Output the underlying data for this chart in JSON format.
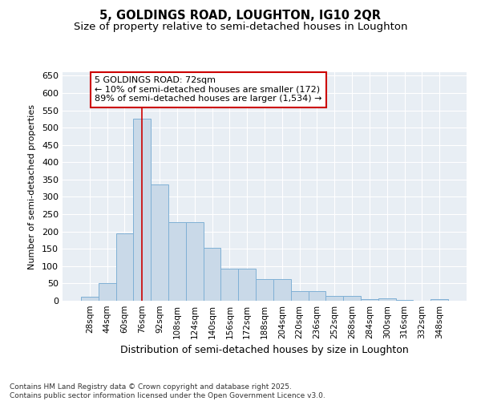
{
  "title": "5, GOLDINGS ROAD, LOUGHTON, IG10 2QR",
  "subtitle": "Size of property relative to semi-detached houses in Loughton",
  "xlabel": "Distribution of semi-detached houses by size in Loughton",
  "ylabel": "Number of semi-detached properties",
  "categories": [
    "28sqm",
    "44sqm",
    "60sqm",
    "76sqm",
    "92sqm",
    "108sqm",
    "124sqm",
    "140sqm",
    "156sqm",
    "172sqm",
    "188sqm",
    "204sqm",
    "220sqm",
    "236sqm",
    "252sqm",
    "268sqm",
    "284sqm",
    "300sqm",
    "316sqm",
    "332sqm",
    "348sqm"
  ],
  "values": [
    12,
    50,
    195,
    525,
    335,
    227,
    227,
    152,
    93,
    93,
    63,
    63,
    28,
    28,
    13,
    13,
    5,
    7,
    2,
    1,
    4
  ],
  "bar_color": "#c9d9e8",
  "bar_edge_color": "#7fb0d5",
  "annotation_line_x": "76sqm",
  "annotation_line_color": "#cc0000",
  "annotation_text": "5 GOLDINGS ROAD: 72sqm\n← 10% of semi-detached houses are smaller (172)\n89% of semi-detached houses are larger (1,534) →",
  "annotation_box_color": "#cc0000",
  "ylim": [
    0,
    660
  ],
  "yticks": [
    0,
    50,
    100,
    150,
    200,
    250,
    300,
    350,
    400,
    450,
    500,
    550,
    600,
    650
  ],
  "bg_color": "#e8eef4",
  "footer_line1": "Contains HM Land Registry data © Crown copyright and database right 2025.",
  "footer_line2": "Contains public sector information licensed under the Open Government Licence v3.0.",
  "title_fontsize": 10.5,
  "subtitle_fontsize": 9.5,
  "annotation_fontsize": 8
}
